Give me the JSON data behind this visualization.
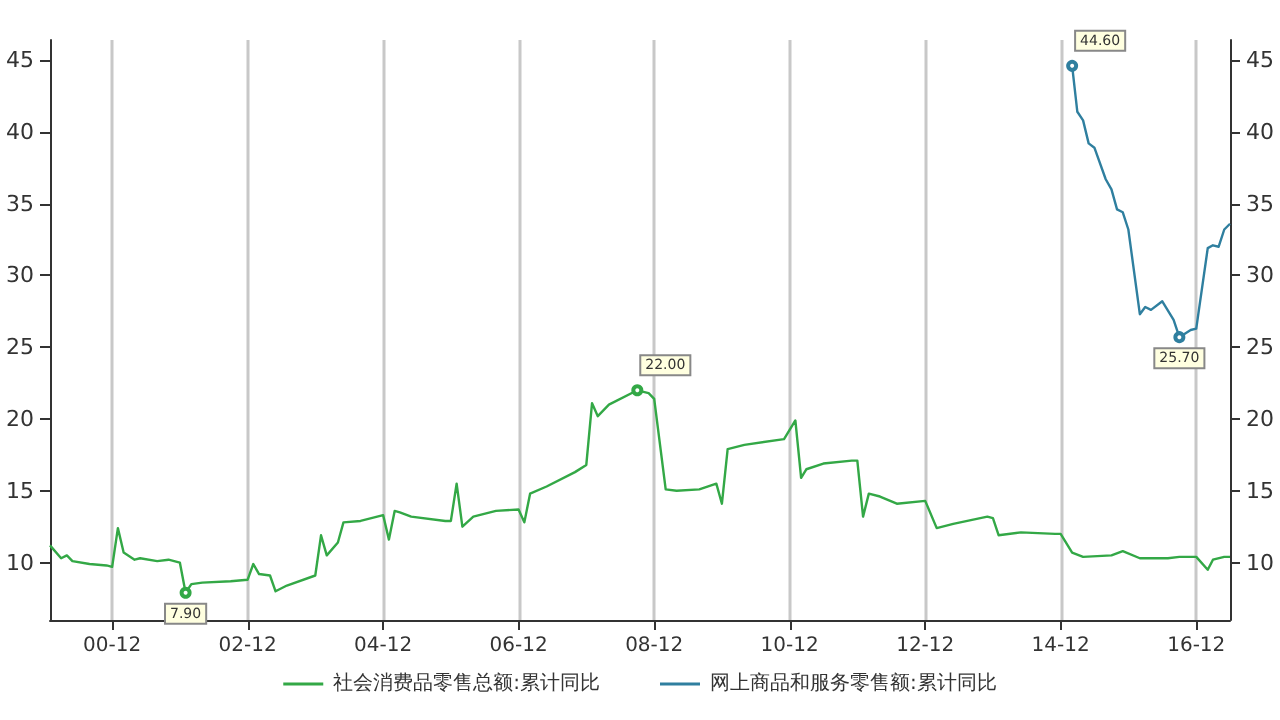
{
  "chart_data": {
    "type": "line",
    "x": [
      "2000-01",
      "2000-03",
      "2000-04",
      "2000-05",
      "2000-08",
      "2000-11",
      "2000-12",
      "2001-01",
      "2001-02",
      "2001-04",
      "2001-05",
      "2001-08",
      "2001-10",
      "2001-12",
      "2002-01",
      "2002-02",
      "2002-04",
      "2002-09",
      "2002-12",
      "2003-01",
      "2003-02",
      "2003-04",
      "2003-05",
      "2003-07",
      "2003-12",
      "2004-01",
      "2004-02",
      "2004-04",
      "2004-05",
      "2004-08",
      "2004-12",
      "2005-01",
      "2005-02",
      "2005-03",
      "2005-05",
      "2005-11",
      "2005-12",
      "2006-01",
      "2006-02",
      "2006-04",
      "2006-08",
      "2006-12",
      "2007-01",
      "2007-02",
      "2007-05",
      "2007-10",
      "2007-12",
      "2008-01",
      "2008-02",
      "2008-04",
      "2008-09",
      "2008-11",
      "2008-12",
      "2009-02",
      "2009-04",
      "2009-08",
      "2009-11",
      "2009-12",
      "2010-01",
      "2010-04",
      "2010-11",
      "2011-01",
      "2011-02",
      "2011-03",
      "2011-06",
      "2011-11",
      "2011-12",
      "2012-01",
      "2012-02",
      "2012-04",
      "2012-07",
      "2012-12",
      "2013-02",
      "2013-05",
      "2013-11",
      "2013-12",
      "2014-01",
      "2014-05",
      "2014-11",
      "2014-12",
      "2015-02",
      "2015-04",
      "2015-09",
      "2015-11",
      "2016-02",
      "2016-07",
      "2016-09",
      "2016-11",
      "2016-12",
      "2017-02",
      "2017-03",
      "2017-05",
      "2017-06"
    ],
    "series": [
      {
        "name": "社会消费品零售总额:累计同比",
        "color": "#33a846",
        "values": [
          11.2,
          10.3,
          10.5,
          10.1,
          9.9,
          9.8,
          9.7,
          12.4,
          10.7,
          10.2,
          10.3,
          10.1,
          10.2,
          10.0,
          7.9,
          8.5,
          8.6,
          8.7,
          8.8,
          9.9,
          9.2,
          9.1,
          8.0,
          8.4,
          9.1,
          11.9,
          10.5,
          11.4,
          12.8,
          12.9,
          13.3,
          11.6,
          13.6,
          13.5,
          13.2,
          12.9,
          12.9,
          15.5,
          12.5,
          13.2,
          13.6,
          13.7,
          12.8,
          14.8,
          15.3,
          16.3,
          16.8,
          21.1,
          20.2,
          21.0,
          22.0,
          21.8,
          21.4,
          15.1,
          15.0,
          15.1,
          15.5,
          14.1,
          17.9,
          18.2,
          18.6,
          19.9,
          15.9,
          16.5,
          16.9,
          17.1,
          17.1,
          13.2,
          14.8,
          14.6,
          14.1,
          14.3,
          12.4,
          12.7,
          13.2,
          13.1,
          11.9,
          12.1,
          12.0,
          12.0,
          10.7,
          10.4,
          10.5,
          10.8,
          10.3,
          10.3,
          10.4,
          10.4,
          10.4,
          9.5,
          10.2,
          10.4,
          10.4
        ],
        "value_labels": [
          null,
          null,
          null,
          null,
          null,
          null,
          null,
          null,
          null,
          null,
          null,
          null,
          null,
          null,
          "7.90",
          null,
          null,
          null,
          null,
          null,
          null,
          null,
          null,
          null,
          null,
          null,
          null,
          null,
          null,
          null,
          null,
          null,
          null,
          null,
          null,
          null,
          null,
          null,
          null,
          null,
          null,
          null,
          null,
          null,
          null,
          null,
          null,
          null,
          null,
          null,
          "22.00",
          null,
          null,
          null,
          null,
          null,
          null,
          null,
          null,
          null,
          null,
          null,
          null,
          null,
          null,
          null,
          null,
          null,
          null,
          null,
          null,
          null,
          null,
          null,
          null,
          null,
          null,
          null,
          null,
          null,
          null,
          null,
          null,
          null,
          null,
          null,
          null,
          null,
          null,
          null,
          null,
          null,
          null
        ]
      },
      {
        "name": "网上商品和服务零售额:累计同比",
        "color": "#2f7f9f",
        "x": [
          "2015-02",
          "2015-03",
          "2015-04",
          "2015-05",
          "2015-06",
          "2015-08",
          "2015-09",
          "2015-10",
          "2015-11",
          "2015-12",
          "2016-02",
          "2016-03",
          "2016-04",
          "2016-06",
          "2016-08",
          "2016-09",
          "2016-11",
          "2016-12",
          "2017-02",
          "2017-03",
          "2017-04",
          "2017-05",
          "2017-06"
        ],
        "values": [
          44.6,
          41.4,
          40.8,
          39.2,
          38.9,
          36.7,
          36.0,
          34.6,
          34.4,
          33.2,
          27.3,
          27.8,
          27.6,
          28.2,
          26.9,
          25.7,
          26.2,
          26.3,
          31.9,
          32.1,
          32.0,
          33.2,
          33.6
        ],
        "value_labels": [
          "44.60",
          null,
          null,
          null,
          null,
          null,
          null,
          null,
          null,
          null,
          null,
          null,
          null,
          null,
          null,
          "25.70",
          null,
          null,
          null,
          null,
          null,
          null,
          null
        ]
      }
    ],
    "xlim": [
      "2000-01",
      "2017-06"
    ],
    "xticks": [
      {
        "value": "2000-12",
        "label": "00-12"
      },
      {
        "value": "2002-12",
        "label": "02-12"
      },
      {
        "value": "2004-12",
        "label": "04-12"
      },
      {
        "value": "2006-12",
        "label": "06-12"
      },
      {
        "value": "2008-12",
        "label": "08-12"
      },
      {
        "value": "2010-12",
        "label": "10-12"
      },
      {
        "value": "2012-12",
        "label": "12-12"
      },
      {
        "value": "2014-12",
        "label": "14-12"
      },
      {
        "value": "2016-12",
        "label": "16-12"
      }
    ],
    "ylim": [
      6,
      46.4
    ],
    "yticks": [
      10,
      15,
      20,
      25,
      30,
      35,
      40,
      45
    ],
    "y2lim": [
      6,
      46.4
    ],
    "y2ticks": [
      10,
      15,
      20,
      25,
      30,
      35,
      40,
      45
    ],
    "grid": "x",
    "legend": "bottom",
    "line_style": "solid",
    "marker": "none"
  }
}
